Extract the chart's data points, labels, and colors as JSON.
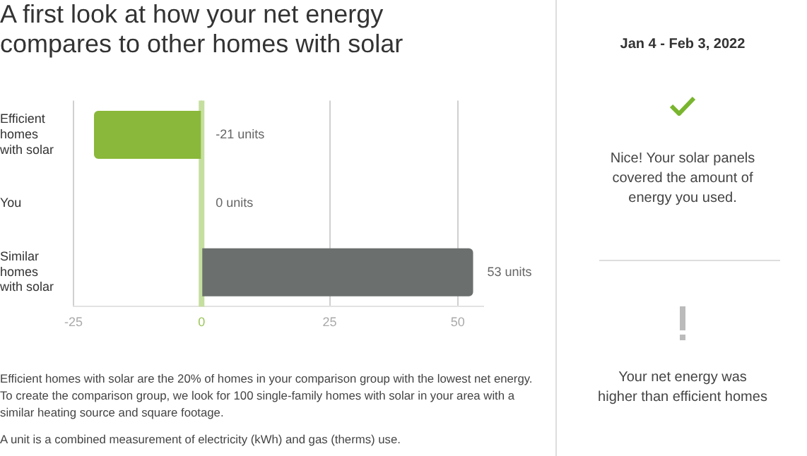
{
  "chart_data": [
    {
      "type": "bar",
      "title": "A first look at how your net energy compares to other homes with solar",
      "orientation": "horizontal",
      "categories": [
        "Efficient homes with solar",
        "You",
        "Similar homes with solar"
      ],
      "values": [
        -21,
        0,
        53
      ],
      "colors": [
        "#8ab83a",
        "#6a7fb5",
        "#6b6f6e"
      ],
      "value_labels": [
        "-21 units",
        "0 units",
        "53 units"
      ],
      "xlim": [
        -25,
        55
      ],
      "xticks": [
        -25,
        0,
        25,
        50
      ],
      "grid": "x",
      "ref_lines": [
        {
          "axis": "x",
          "value": 0,
          "color": "#c5df9e"
        }
      ],
      "annotations": [
        "Efficient homes with solar are the 20% of homes in your comparison group with the lowest net energy. To create the comparison group, we look for 100 single-family homes with solar in your area with a similar heating source and square footage.",
        "A unit is a combined measurement of electricity (kWh) and gas (therms) use."
      ]
    },
    {
      "type": "other",
      "title": "Jan 4 - Feb 3, 2022",
      "annotations": [
        "Nice! Your solar panels covered the amount of energy you used.",
        "Your net energy was higher than efficient homes"
      ]
    }
  ]
}
